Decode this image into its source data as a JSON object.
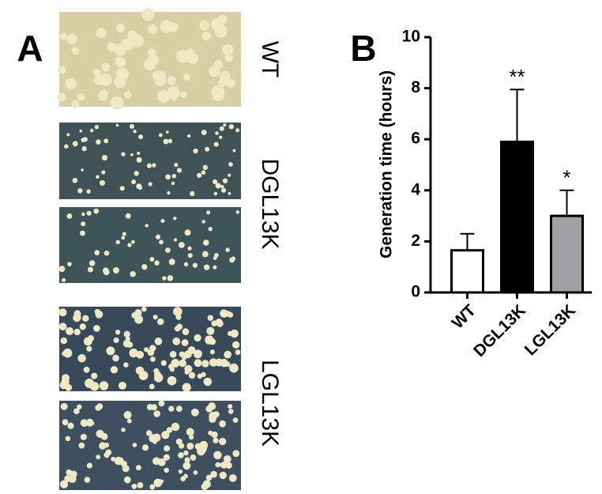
{
  "panel_labels": [
    "A",
    "B"
  ],
  "image_labels": [
    "WT",
    "DGL13K",
    "LGL13K"
  ],
  "chart_data": {
    "type": "bar",
    "y_label": "Generation time (hours)",
    "categories": [
      "WT",
      "DGL13K",
      "LGL13K"
    ],
    "values": [
      1.65,
      5.9,
      3.0
    ],
    "errors": [
      0.65,
      2.05,
      1.0
    ],
    "colors": [
      "#ffffff",
      "#000000",
      "#a0a0a4"
    ],
    "value_annotations": [
      null,
      "**",
      "*"
    ],
    "ylim": [
      0,
      10
    ],
    "yticks": [
      0,
      2,
      4,
      6,
      8,
      10
    ],
    "grid": false
  }
}
